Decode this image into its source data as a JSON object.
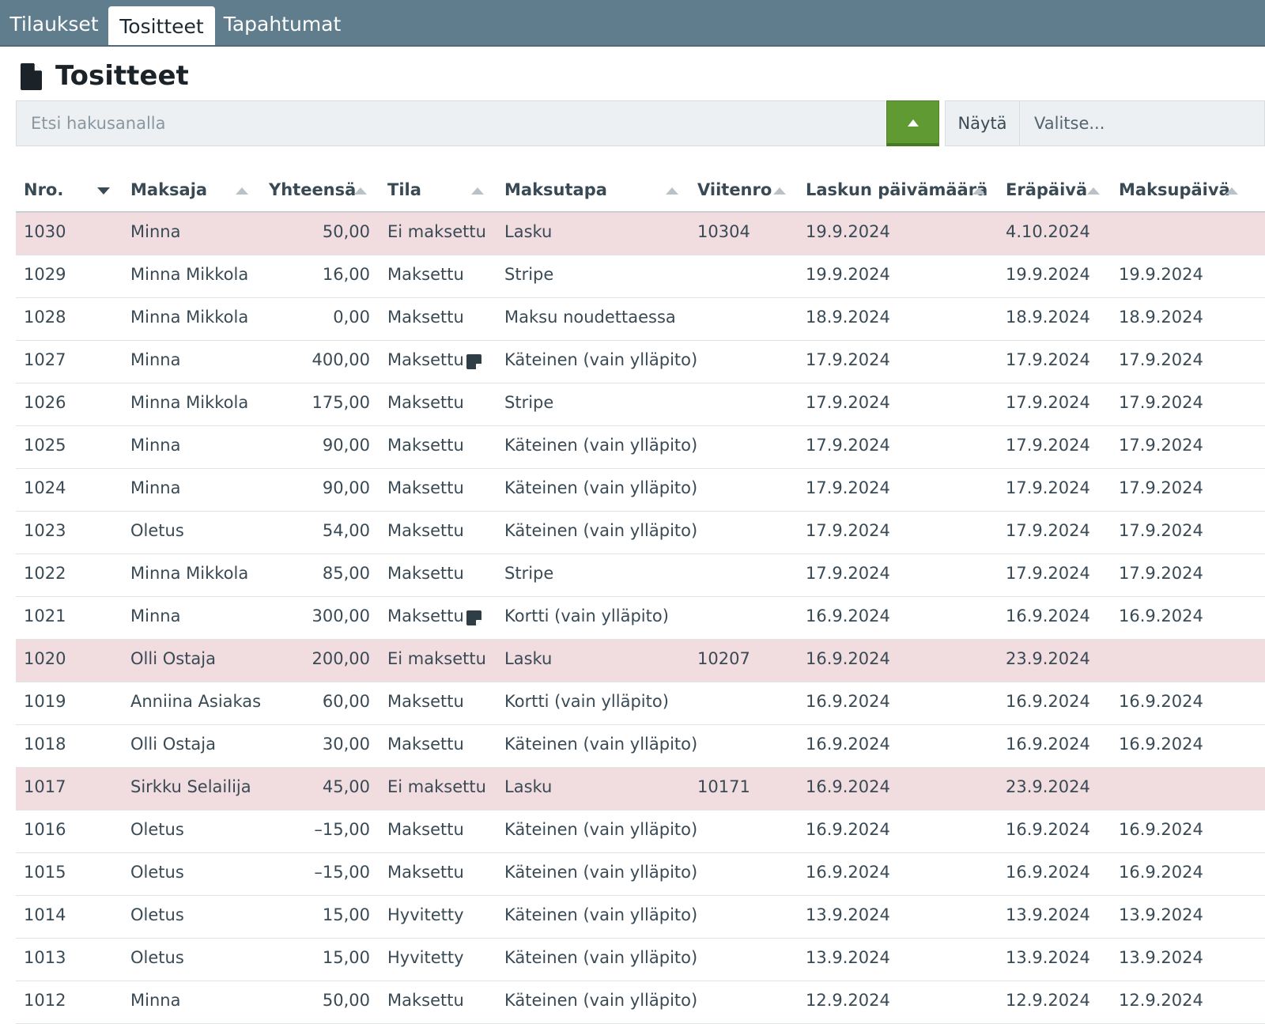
{
  "tabs": [
    {
      "label": "Tilaukset"
    },
    {
      "label": "Tositteet"
    },
    {
      "label": "Tapahtumat"
    }
  ],
  "page": {
    "title": "Tositteet",
    "icon": "file-icon"
  },
  "search": {
    "placeholder": "Etsi hakusanalla",
    "value": ""
  },
  "filter": {
    "show_label": "Näytä",
    "select_placeholder": "Valitse..."
  },
  "colors": {
    "accent_green": "#5f9a33",
    "tabbar": "#5f7d8c",
    "unpaid_row": "#f1dde0"
  },
  "table": {
    "columns": [
      {
        "label": "Nro.",
        "sort": "desc"
      },
      {
        "label": "Maksaja",
        "sort": "asc"
      },
      {
        "label": "Yhteensä",
        "sort": "asc"
      },
      {
        "label": "Tila",
        "sort": "asc"
      },
      {
        "label": "Maksutapa",
        "sort": "asc"
      },
      {
        "label": "Viitenro",
        "sort": "asc"
      },
      {
        "label": "Laskun päivämäärä",
        "sort": "asc"
      },
      {
        "label": "Eräpäivä",
        "sort": "asc"
      },
      {
        "label": "Maksupäivä",
        "sort": "asc"
      }
    ],
    "rows": [
      {
        "nro": "1030",
        "maksaja": "Minna",
        "yhteensa": "50,00",
        "tila": "Ei maksettu",
        "maksutapa": "Lasku",
        "viitenro": "10304",
        "laskupvm": "19.9.2024",
        "erapaiva": "4.10.2024",
        "maksupaiva": "",
        "unpaid": true,
        "note": false
      },
      {
        "nro": "1029",
        "maksaja": "Minna Mikkola",
        "yhteensa": "16,00",
        "tila": "Maksettu",
        "maksutapa": "Stripe",
        "viitenro": "",
        "laskupvm": "19.9.2024",
        "erapaiva": "19.9.2024",
        "maksupaiva": "19.9.2024",
        "unpaid": false,
        "note": false
      },
      {
        "nro": "1028",
        "maksaja": "Minna Mikkola",
        "yhteensa": "0,00",
        "tila": "Maksettu",
        "maksutapa": "Maksu noudettaessa",
        "viitenro": "",
        "laskupvm": "18.9.2024",
        "erapaiva": "18.9.2024",
        "maksupaiva": "18.9.2024",
        "unpaid": false,
        "note": false
      },
      {
        "nro": "1027",
        "maksaja": "Minna",
        "yhteensa": "400,00",
        "tila": "Maksettu",
        "maksutapa": "Käteinen (vain ylläpito)",
        "viitenro": "",
        "laskupvm": "17.9.2024",
        "erapaiva": "17.9.2024",
        "maksupaiva": "17.9.2024",
        "unpaid": false,
        "note": true
      },
      {
        "nro": "1026",
        "maksaja": "Minna Mikkola",
        "yhteensa": "175,00",
        "tila": "Maksettu",
        "maksutapa": "Stripe",
        "viitenro": "",
        "laskupvm": "17.9.2024",
        "erapaiva": "17.9.2024",
        "maksupaiva": "17.9.2024",
        "unpaid": false,
        "note": false
      },
      {
        "nro": "1025",
        "maksaja": "Minna",
        "yhteensa": "90,00",
        "tila": "Maksettu",
        "maksutapa": "Käteinen (vain ylläpito)",
        "viitenro": "",
        "laskupvm": "17.9.2024",
        "erapaiva": "17.9.2024",
        "maksupaiva": "17.9.2024",
        "unpaid": false,
        "note": false
      },
      {
        "nro": "1024",
        "maksaja": "Minna",
        "yhteensa": "90,00",
        "tila": "Maksettu",
        "maksutapa": "Käteinen (vain ylläpito)",
        "viitenro": "",
        "laskupvm": "17.9.2024",
        "erapaiva": "17.9.2024",
        "maksupaiva": "17.9.2024",
        "unpaid": false,
        "note": false
      },
      {
        "nro": "1023",
        "maksaja": "Oletus",
        "yhteensa": "54,00",
        "tila": "Maksettu",
        "maksutapa": "Käteinen (vain ylläpito)",
        "viitenro": "",
        "laskupvm": "17.9.2024",
        "erapaiva": "17.9.2024",
        "maksupaiva": "17.9.2024",
        "unpaid": false,
        "note": false
      },
      {
        "nro": "1022",
        "maksaja": "Minna Mikkola",
        "yhteensa": "85,00",
        "tila": "Maksettu",
        "maksutapa": "Stripe",
        "viitenro": "",
        "laskupvm": "17.9.2024",
        "erapaiva": "17.9.2024",
        "maksupaiva": "17.9.2024",
        "unpaid": false,
        "note": false
      },
      {
        "nro": "1021",
        "maksaja": "Minna",
        "yhteensa": "300,00",
        "tila": "Maksettu",
        "maksutapa": "Kortti (vain ylläpito)",
        "viitenro": "",
        "laskupvm": "16.9.2024",
        "erapaiva": "16.9.2024",
        "maksupaiva": "16.9.2024",
        "unpaid": false,
        "note": true
      },
      {
        "nro": "1020",
        "maksaja": "Olli Ostaja",
        "yhteensa": "200,00",
        "tila": "Ei maksettu",
        "maksutapa": "Lasku",
        "viitenro": "10207",
        "laskupvm": "16.9.2024",
        "erapaiva": "23.9.2024",
        "maksupaiva": "",
        "unpaid": true,
        "note": false
      },
      {
        "nro": "1019",
        "maksaja": "Anniina Asiakas",
        "yhteensa": "60,00",
        "tila": "Maksettu",
        "maksutapa": "Kortti (vain ylläpito)",
        "viitenro": "",
        "laskupvm": "16.9.2024",
        "erapaiva": "16.9.2024",
        "maksupaiva": "16.9.2024",
        "unpaid": false,
        "note": false
      },
      {
        "nro": "1018",
        "maksaja": "Olli Ostaja",
        "yhteensa": "30,00",
        "tila": "Maksettu",
        "maksutapa": "Käteinen (vain ylläpito)",
        "viitenro": "",
        "laskupvm": "16.9.2024",
        "erapaiva": "16.9.2024",
        "maksupaiva": "16.9.2024",
        "unpaid": false,
        "note": false
      },
      {
        "nro": "1017",
        "maksaja": "Sirkku Selailija",
        "yhteensa": "45,00",
        "tila": "Ei maksettu",
        "maksutapa": "Lasku",
        "viitenro": "10171",
        "laskupvm": "16.9.2024",
        "erapaiva": "23.9.2024",
        "maksupaiva": "",
        "unpaid": true,
        "note": false
      },
      {
        "nro": "1016",
        "maksaja": "Oletus",
        "yhteensa": "–15,00",
        "tila": "Maksettu",
        "maksutapa": "Käteinen (vain ylläpito)",
        "viitenro": "",
        "laskupvm": "16.9.2024",
        "erapaiva": "16.9.2024",
        "maksupaiva": "16.9.2024",
        "unpaid": false,
        "note": false
      },
      {
        "nro": "1015",
        "maksaja": "Oletus",
        "yhteensa": "–15,00",
        "tila": "Maksettu",
        "maksutapa": "Käteinen (vain ylläpito)",
        "viitenro": "",
        "laskupvm": "16.9.2024",
        "erapaiva": "16.9.2024",
        "maksupaiva": "16.9.2024",
        "unpaid": false,
        "note": false
      },
      {
        "nro": "1014",
        "maksaja": "Oletus",
        "yhteensa": "15,00",
        "tila": "Hyvitetty",
        "maksutapa": "Käteinen (vain ylläpito)",
        "viitenro": "",
        "laskupvm": "13.9.2024",
        "erapaiva": "13.9.2024",
        "maksupaiva": "13.9.2024",
        "unpaid": false,
        "note": false
      },
      {
        "nro": "1013",
        "maksaja": "Oletus",
        "yhteensa": "15,00",
        "tila": "Hyvitetty",
        "maksutapa": "Käteinen (vain ylläpito)",
        "viitenro": "",
        "laskupvm": "13.9.2024",
        "erapaiva": "13.9.2024",
        "maksupaiva": "13.9.2024",
        "unpaid": false,
        "note": false
      },
      {
        "nro": "1012",
        "maksaja": "Minna",
        "yhteensa": "50,00",
        "tila": "Maksettu",
        "maksutapa": "Käteinen (vain ylläpito)",
        "viitenro": "",
        "laskupvm": "12.9.2024",
        "erapaiva": "12.9.2024",
        "maksupaiva": "12.9.2024",
        "unpaid": false,
        "note": false
      }
    ]
  }
}
